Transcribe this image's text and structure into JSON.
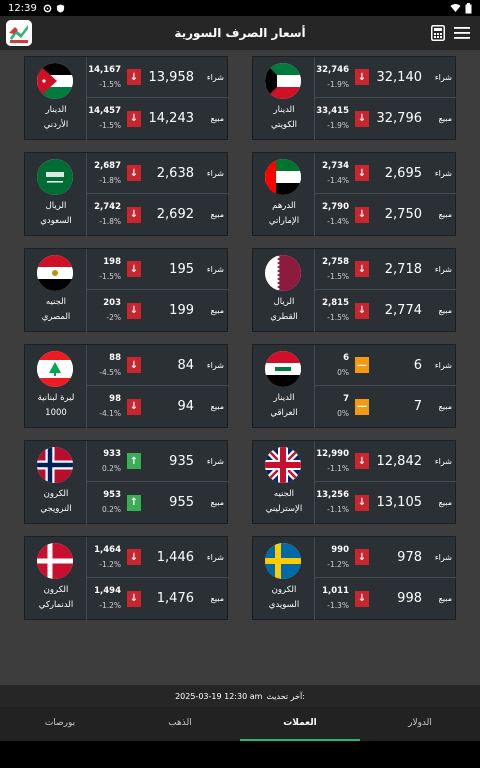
{
  "status": {
    "time": "12:39"
  },
  "app": {
    "title": "أسعار الصرف السورية"
  },
  "labels": {
    "buy": "شراء",
    "sell": "مبيع"
  },
  "colors": {
    "down": "#c8262e",
    "up": "#3cad57",
    "flat": "#f39a12",
    "accent": "#2ab47a"
  },
  "currencies": [
    {
      "id": "kwd",
      "name1": "الدينار",
      "name2": "الكويتي",
      "flag": "kuwait",
      "buy": {
        "price": "32,140",
        "abs": "32,746",
        "pct": "-1.9%",
        "dir": "down",
        "icon": "arrow-down-icon"
      },
      "sell": {
        "price": "32,796",
        "abs": "33,415",
        "pct": "-1.9%",
        "dir": "down",
        "icon": "arrow-down-icon"
      }
    },
    {
      "id": "jod",
      "name1": "الدينار",
      "name2": "الأردني",
      "flag": "jordan",
      "buy": {
        "price": "13,958",
        "abs": "14,167",
        "pct": "-1.5%",
        "dir": "down",
        "icon": "arrow-down-icon"
      },
      "sell": {
        "price": "14,243",
        "abs": "14,457",
        "pct": "-1.5%",
        "dir": "down",
        "icon": "arrow-down-icon"
      }
    },
    {
      "id": "aed",
      "name1": "الدرهم",
      "name2": "الإماراتي",
      "flag": "uae",
      "buy": {
        "price": "2,695",
        "abs": "2,734",
        "pct": "-1.4%",
        "dir": "down",
        "icon": "arrow-down-icon"
      },
      "sell": {
        "price": "2,750",
        "abs": "2,790",
        "pct": "-1.4%",
        "dir": "down",
        "icon": "arrow-down-icon"
      }
    },
    {
      "id": "sar",
      "name1": "الريال",
      "name2": "السعودي",
      "flag": "saudi",
      "buy": {
        "price": "2,638",
        "abs": "2,687",
        "pct": "-1.8%",
        "dir": "down",
        "icon": "arrow-down-icon"
      },
      "sell": {
        "price": "2,692",
        "abs": "2,742",
        "pct": "-1.8%",
        "dir": "down",
        "icon": "arrow-down-icon"
      }
    },
    {
      "id": "qar",
      "name1": "الريال",
      "name2": "القطري",
      "flag": "qatar",
      "buy": {
        "price": "2,718",
        "abs": "2,758",
        "pct": "-1.5%",
        "dir": "down",
        "icon": "arrow-down-icon"
      },
      "sell": {
        "price": "2,774",
        "abs": "2,815",
        "pct": "-1.5%",
        "dir": "down",
        "icon": "arrow-down-icon"
      }
    },
    {
      "id": "egp",
      "name1": "الجنيه",
      "name2": "المصري",
      "flag": "egypt",
      "buy": {
        "price": "195",
        "abs": "198",
        "pct": "-1.5%",
        "dir": "down",
        "icon": "arrow-down-icon"
      },
      "sell": {
        "price": "199",
        "abs": "203",
        "pct": "-2%",
        "dir": "down",
        "icon": "arrow-down-icon"
      }
    },
    {
      "id": "iqd",
      "name1": "الدينار",
      "name2": "العراقي",
      "flag": "iraq",
      "buy": {
        "price": "6",
        "abs": "6",
        "pct": "0%",
        "dir": "flat",
        "icon": "dash-icon"
      },
      "sell": {
        "price": "7",
        "abs": "7",
        "pct": "0%",
        "dir": "flat",
        "icon": "dash-icon"
      }
    },
    {
      "id": "lbp",
      "name1": "ليرة لبنانية",
      "name2": "1000",
      "flag": "lebanon",
      "buy": {
        "price": "84",
        "abs": "88",
        "pct": "-4.5%",
        "dir": "down",
        "icon": "arrow-down-icon"
      },
      "sell": {
        "price": "94",
        "abs": "98",
        "pct": "-4.1%",
        "dir": "down",
        "icon": "arrow-down-icon"
      }
    },
    {
      "id": "gbp",
      "name1": "الجنيه",
      "name2": "الإسترليني",
      "flag": "uk",
      "buy": {
        "price": "12,842",
        "abs": "12,990",
        "pct": "-1.1%",
        "dir": "down",
        "icon": "arrow-down-icon"
      },
      "sell": {
        "price": "13,105",
        "abs": "13,256",
        "pct": "-1.1%",
        "dir": "down",
        "icon": "arrow-down-icon"
      }
    },
    {
      "id": "nok",
      "name1": "الكرون",
      "name2": "النرويجي",
      "flag": "norway",
      "buy": {
        "price": "935",
        "abs": "933",
        "pct": "0.2%",
        "dir": "up",
        "icon": "arrow-up-icon"
      },
      "sell": {
        "price": "955",
        "abs": "953",
        "pct": "0.2%",
        "dir": "up",
        "icon": "arrow-up-icon"
      }
    },
    {
      "id": "sek",
      "name1": "الكرون",
      "name2": "السويدي",
      "flag": "sweden",
      "buy": {
        "price": "978",
        "abs": "990",
        "pct": "-1.2%",
        "dir": "down",
        "icon": "arrow-down-icon"
      },
      "sell": {
        "price": "998",
        "abs": "1,011",
        "pct": "-1.3%",
        "dir": "down",
        "icon": "arrow-down-icon"
      }
    },
    {
      "id": "dkk",
      "name1": "الكرون",
      "name2": "الدنماركي",
      "flag": "denmark",
      "buy": {
        "price": "1,446",
        "abs": "1,464",
        "pct": "-1.2%",
        "dir": "down",
        "icon": "arrow-down-icon"
      },
      "sell": {
        "price": "1,476",
        "abs": "1,494",
        "pct": "-1.2%",
        "dir": "down",
        "icon": "arrow-down-icon"
      }
    }
  ],
  "update": {
    "label": "آخر تحديث:",
    "value": "2025-03-19 12:30 am"
  },
  "tabs": [
    {
      "label": "الدولار",
      "active": false
    },
    {
      "label": "العملات",
      "active": true
    },
    {
      "label": "الذهب",
      "active": false
    },
    {
      "label": "بورصات",
      "active": false
    }
  ]
}
